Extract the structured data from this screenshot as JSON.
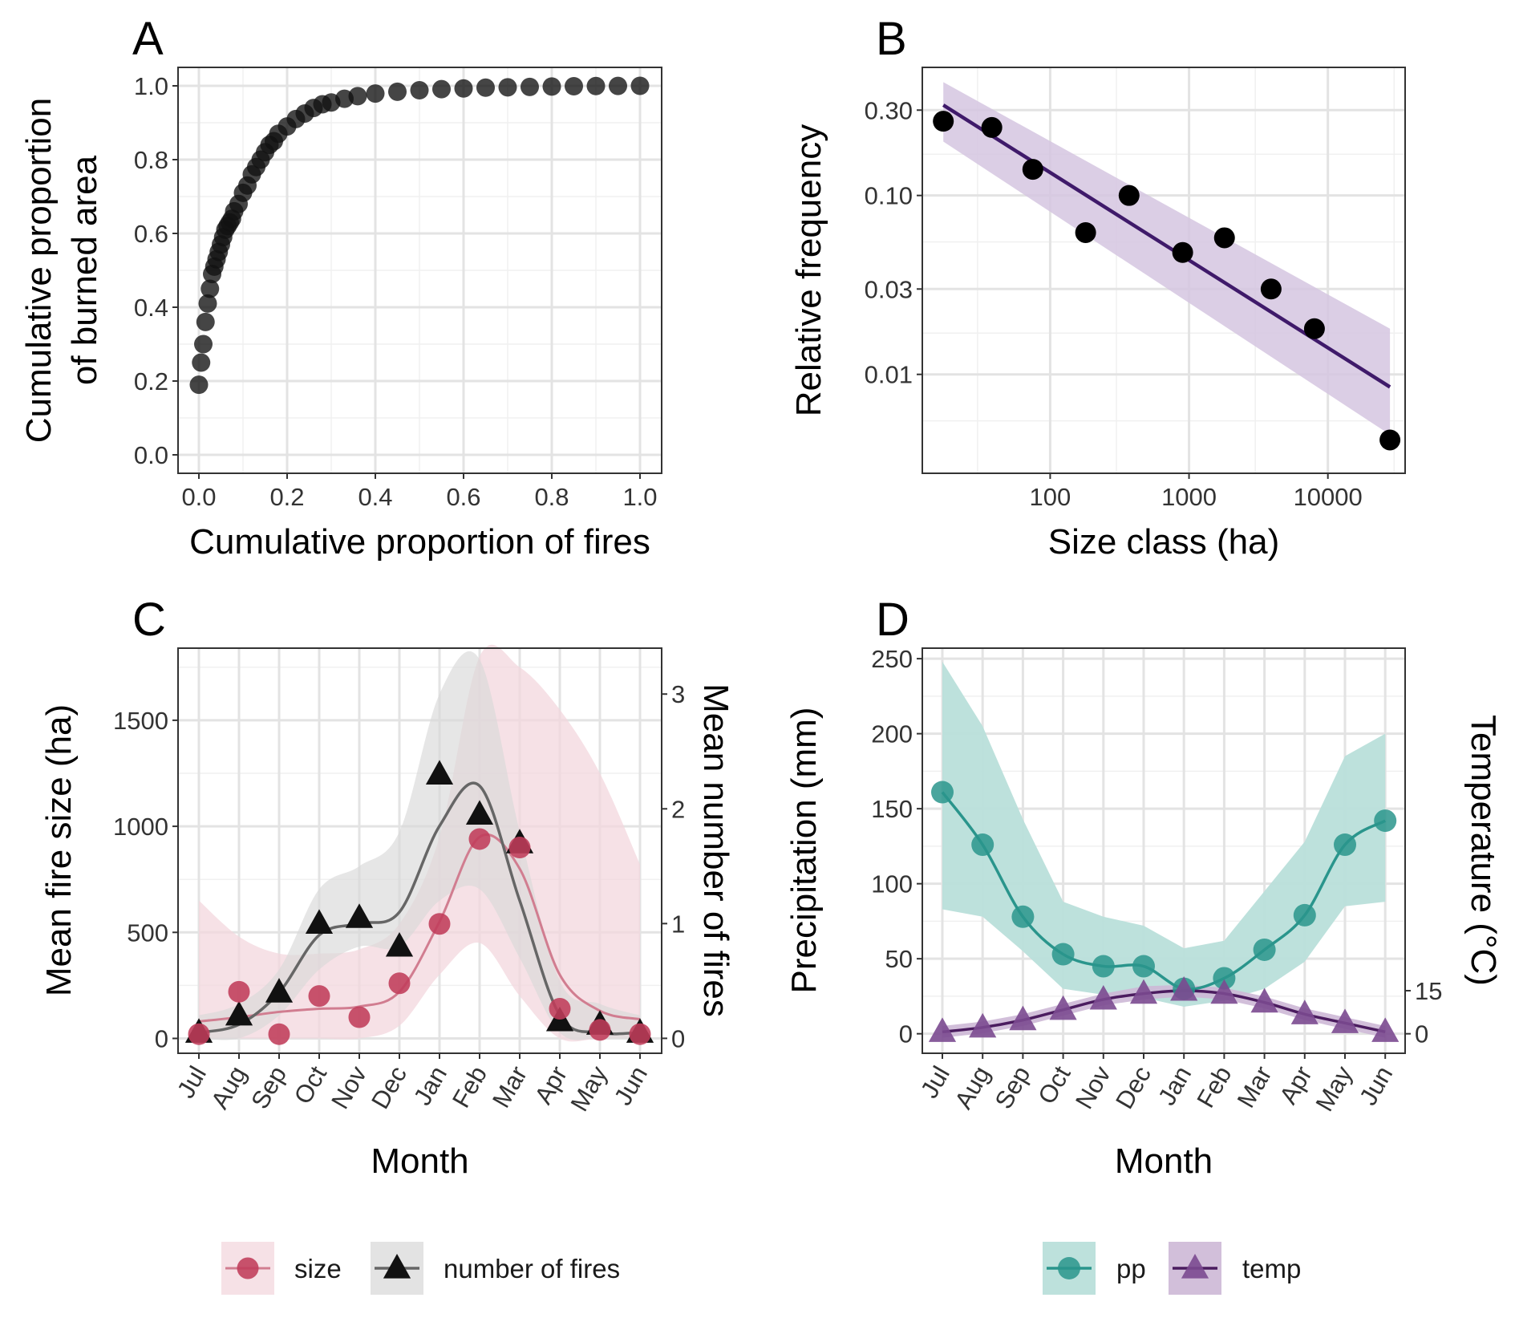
{
  "chart_data": [
    {
      "panel": "A",
      "type": "scatter",
      "xlabel": "Cumulative proportion of fires",
      "ylabel": [
        "Cumulative proportion",
        "of burned area"
      ],
      "xlim": [
        0,
        1
      ],
      "ylim": [
        0,
        1
      ],
      "xticks": [
        "0.0",
        "0.2",
        "0.4",
        "0.6",
        "0.8",
        "1.0"
      ],
      "yticks": [
        "0.0",
        "0.2",
        "0.4",
        "0.6",
        "0.8",
        "1.0"
      ],
      "grid": true,
      "x": [
        0.0,
        0.005,
        0.01,
        0.015,
        0.02,
        0.025,
        0.03,
        0.035,
        0.04,
        0.045,
        0.05,
        0.055,
        0.06,
        0.065,
        0.07,
        0.075,
        0.08,
        0.09,
        0.1,
        0.11,
        0.12,
        0.13,
        0.14,
        0.15,
        0.16,
        0.17,
        0.18,
        0.2,
        0.22,
        0.24,
        0.26,
        0.28,
        0.3,
        0.33,
        0.36,
        0.4,
        0.45,
        0.5,
        0.55,
        0.6,
        0.65,
        0.7,
        0.75,
        0.8,
        0.85,
        0.9,
        0.95,
        1.0
      ],
      "y": [
        0.19,
        0.25,
        0.3,
        0.36,
        0.41,
        0.45,
        0.49,
        0.51,
        0.53,
        0.55,
        0.57,
        0.59,
        0.61,
        0.62,
        0.63,
        0.64,
        0.66,
        0.68,
        0.71,
        0.73,
        0.76,
        0.78,
        0.8,
        0.82,
        0.84,
        0.85,
        0.87,
        0.89,
        0.91,
        0.925,
        0.94,
        0.95,
        0.955,
        0.965,
        0.972,
        0.979,
        0.984,
        0.988,
        0.991,
        0.993,
        0.995,
        0.996,
        0.997,
        0.998,
        0.999,
        0.9995,
        0.9998,
        1.0
      ]
    },
    {
      "panel": "B",
      "type": "scatter",
      "xlabel": "Size class (ha)",
      "ylabel": "Relative frequency",
      "xscale": "log",
      "yscale": "log",
      "xlim": [
        12,
        36000
      ],
      "ylim": [
        0.0028,
        0.52
      ],
      "xticks": [
        "100",
        "1000",
        "10000"
      ],
      "yticks": [
        "0.01",
        "0.03",
        "0.10",
        "0.30"
      ],
      "grid": true,
      "x": [
        17,
        38,
        75,
        180,
        370,
        900,
        1800,
        3900,
        8000,
        28000
      ],
      "y": [
        0.26,
        0.24,
        0.14,
        0.062,
        0.1,
        0.048,
        0.058,
        0.03,
        0.018,
        0.0043
      ],
      "fit_line": {
        "x": [
          17,
          28000
        ],
        "y": [
          0.32,
          0.0085
        ]
      },
      "ci_band": {
        "x": [
          17,
          28000
        ],
        "upper": [
          0.43,
          0.018
        ],
        "lower": [
          0.2,
          0.0046
        ]
      },
      "colors": {
        "points": "#000000",
        "fit": "#3f1a6a",
        "band": "#d5c6e0"
      }
    },
    {
      "panel": "C",
      "type": "line",
      "xlabel": "Month",
      "ylabel": "Mean fire size (ha)",
      "ylabel_right": "Mean number of fires",
      "categories": [
        "Jul",
        "Aug",
        "Sep",
        "Oct",
        "Nov",
        "Dec",
        "Jan",
        "Feb",
        "Mar",
        "Apr",
        "May",
        "Jun"
      ],
      "ylim": [
        -70,
        1840
      ],
      "ylim_right": [
        -0.13,
        3.4
      ],
      "yticks": [
        "0",
        "500",
        "1000",
        "1500"
      ],
      "yticks_right": [
        "0",
        "1",
        "2",
        "3"
      ],
      "series": [
        {
          "name": "size",
          "axis": "left",
          "points": [
            20,
            220,
            20,
            200,
            100,
            260,
            540,
            940,
            900,
            140,
            40,
            20
          ],
          "smooth": [
            80,
            100,
            125,
            140,
            150,
            220,
            550,
            950,
            800,
            300,
            130,
            90
          ],
          "band_upper": [
            650,
            480,
            400,
            400,
            420,
            540,
            950,
            1800,
            1750,
            1550,
            1250,
            820
          ],
          "band_lower": [
            0,
            0,
            0,
            0,
            0,
            60,
            300,
            450,
            200,
            0,
            0,
            0
          ],
          "color": "#c03c5a",
          "band_color": "#f3d7de"
        },
        {
          "name": "number of fires",
          "axis": "right",
          "points": [
            0.05,
            0.2,
            0.4,
            1.0,
            1.05,
            0.8,
            2.3,
            1.95,
            1.7,
            0.15,
            0.12,
            0.05
          ],
          "smooth": [
            0.05,
            0.12,
            0.4,
            0.9,
            1.0,
            1.1,
            1.85,
            2.2,
            1.2,
            0.2,
            0.05,
            0.05
          ],
          "band_upper": [
            0.2,
            0.3,
            0.6,
            1.3,
            1.5,
            1.8,
            3.0,
            3.3,
            1.8,
            0.5,
            0.3,
            0.2
          ],
          "band_lower": [
            0.0,
            0.0,
            0.2,
            0.6,
            0.8,
            0.8,
            1.2,
            1.3,
            0.7,
            0.05,
            0.0,
            0.0
          ],
          "color": "#111111",
          "band_color": "#d9d9d9"
        }
      ],
      "legend": {
        "placement": "bottom",
        "items": [
          "size",
          "number of fires"
        ]
      }
    },
    {
      "panel": "D",
      "type": "line",
      "xlabel": "Month",
      "ylabel": "Precipitation (mm)",
      "ylabel_right": "Temperature (°C)",
      "categories": [
        "Jul",
        "Aug",
        "Sep",
        "Oct",
        "Nov",
        "Dec",
        "Jan",
        "Feb",
        "Mar",
        "Apr",
        "May",
        "Jun"
      ],
      "ylim": [
        -13,
        257
      ],
      "yticks": [
        "0",
        "50",
        "100",
        "150",
        "200",
        "250"
      ],
      "yticks_right": [
        "0",
        "15"
      ],
      "series": [
        {
          "name": "pp",
          "axis": "left",
          "values": [
            161,
            126,
            78,
            53,
            45,
            45,
            30,
            37,
            56,
            79,
            126,
            142
          ],
          "band_upper": [
            248,
            205,
            143,
            88,
            78,
            72,
            57,
            62,
            95,
            128,
            185,
            200
          ],
          "band_lower": [
            83,
            78,
            55,
            30,
            26,
            24,
            18,
            22,
            30,
            48,
            85,
            88
          ],
          "color": "#2a958c",
          "band_color": "#b9dfda"
        },
        {
          "name": "temp",
          "axis": "right",
          "values": [
            1,
            2.5,
            5,
            8.5,
            12,
            14,
            15,
            14,
            11,
            7,
            4,
            1
          ],
          "band_upper": [
            3,
            4.5,
            7,
            10.5,
            14,
            16.5,
            17,
            16,
            13,
            9,
            6,
            3
          ],
          "band_lower": [
            -1,
            0.5,
            3,
            6.5,
            10,
            12,
            13,
            12,
            9,
            5,
            2,
            -1
          ],
          "color": "#4b1c5f",
          "band_color": "#cdb8d6"
        }
      ],
      "legend": {
        "placement": "bottom",
        "items": [
          "pp",
          "temp"
        ]
      }
    }
  ],
  "panel_labels": {
    "a": "A",
    "b": "B",
    "c": "C",
    "d": "D"
  }
}
